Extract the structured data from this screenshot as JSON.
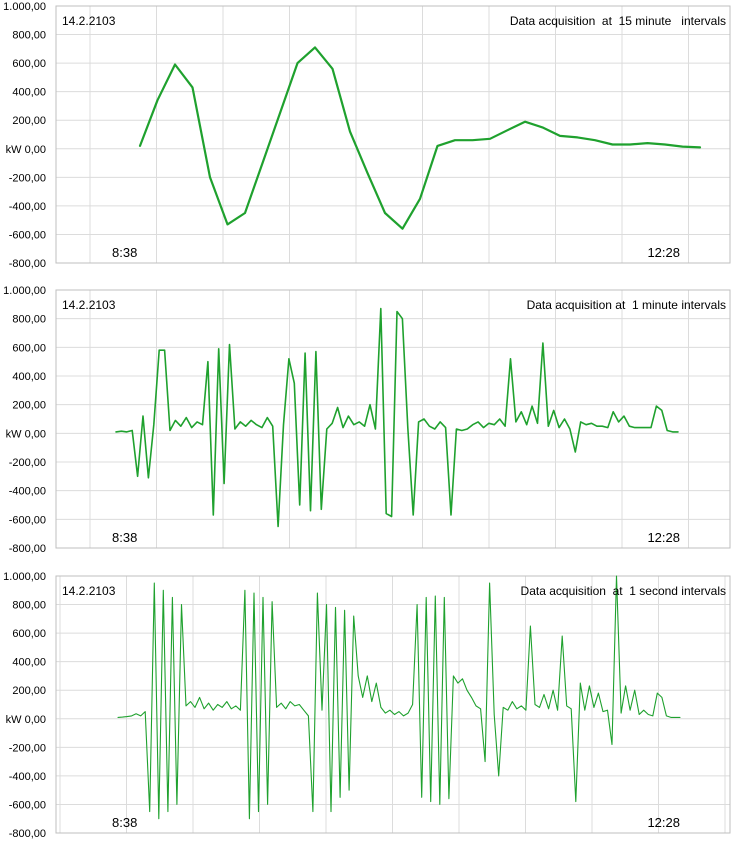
{
  "y_ticks": [
    "1.000,00",
    "800,00",
    "600,00",
    "400,00",
    "200,00",
    "kW 0,00",
    "-200,00",
    "-400,00",
    "-600,00",
    "-800,00"
  ],
  "colors": {
    "series": "#1fa12e",
    "grid": "#dcdcdc",
    "frame": "#bfbfbf"
  },
  "chart_data": [
    {
      "type": "line",
      "date_label": "14.2.2103",
      "annotation": "Data acquisition  at  15 minute   intervals",
      "ylabel": "kW",
      "ylim": [
        -800,
        1000
      ],
      "x_start_label": "8:38",
      "x_end_label": "12:28",
      "grid": true,
      "series": [
        {
          "values": [
            20,
            340,
            590,
            430,
            -200,
            -530,
            -450,
            -100,
            250,
            600,
            710,
            560,
            120,
            -170,
            -450,
            -560,
            -350,
            20,
            60,
            60,
            70,
            130,
            190,
            150,
            90,
            80,
            60,
            30,
            30,
            40,
            30,
            15,
            10
          ]
        }
      ]
    },
    {
      "type": "line",
      "date_label": "14.2.2103",
      "annotation": "Data acquisition at  1 minute intervals",
      "ylabel": "kW",
      "ylim": [
        -800,
        1000
      ],
      "x_start_label": "8:38",
      "x_end_label": "12:28",
      "grid": true,
      "series": [
        {
          "values": [
            10,
            15,
            10,
            20,
            -300,
            120,
            -310,
            60,
            580,
            580,
            20,
            90,
            50,
            110,
            40,
            80,
            60,
            500,
            -570,
            590,
            -350,
            620,
            30,
            80,
            50,
            90,
            60,
            40,
            110,
            50,
            -650,
            60,
            520,
            350,
            -500,
            560,
            -540,
            570,
            -530,
            30,
            70,
            180,
            40,
            120,
            60,
            80,
            50,
            200,
            30,
            870,
            -560,
            -580,
            850,
            800,
            40,
            -570,
            80,
            100,
            50,
            30,
            80,
            40,
            -570,
            30,
            20,
            30,
            60,
            80,
            40,
            70,
            60,
            100,
            50,
            520,
            80,
            150,
            60,
            190,
            70,
            630,
            50,
            160,
            40,
            100,
            30,
            -130,
            80,
            60,
            70,
            50,
            50,
            40,
            150,
            80,
            120,
            50,
            40,
            40,
            40,
            40,
            190,
            160,
            20,
            10,
            10
          ]
        }
      ]
    },
    {
      "type": "line",
      "date_label": "14.2.2103",
      "annotation": "Data acquisition  at  1 second intervals",
      "ylabel": "kW",
      "ylim": [
        -800,
        1000
      ],
      "x_start_label": "8:38",
      "x_end_label": "12:28",
      "grid": true,
      "series": [
        {
          "values": [
            10,
            12,
            15,
            20,
            35,
            20,
            50,
            -650,
            950,
            -700,
            900,
            -650,
            850,
            -600,
            800,
            90,
            120,
            80,
            150,
            70,
            110,
            60,
            100,
            80,
            120,
            70,
            90,
            60,
            900,
            -700,
            880,
            -650,
            850,
            -600,
            820,
            80,
            110,
            70,
            120,
            90,
            100,
            60,
            20,
            -650,
            880,
            60,
            800,
            -650,
            780,
            -550,
            760,
            -500,
            720,
            300,
            150,
            300,
            120,
            250,
            80,
            40,
            60,
            30,
            50,
            20,
            40,
            100,
            800,
            -550,
            850,
            -580,
            860,
            -600,
            850,
            -560,
            300,
            250,
            280,
            200,
            150,
            90,
            70,
            -300,
            950,
            30,
            -400,
            80,
            60,
            120,
            70,
            90,
            60,
            650,
            100,
            80,
            170,
            70,
            200,
            60,
            580,
            90,
            70,
            -580,
            250,
            60,
            230,
            80,
            180,
            50,
            60,
            -180,
            1000,
            40,
            230,
            60,
            200,
            30,
            60,
            30,
            20,
            180,
            150,
            20,
            10,
            10,
            10
          ]
        }
      ]
    }
  ]
}
